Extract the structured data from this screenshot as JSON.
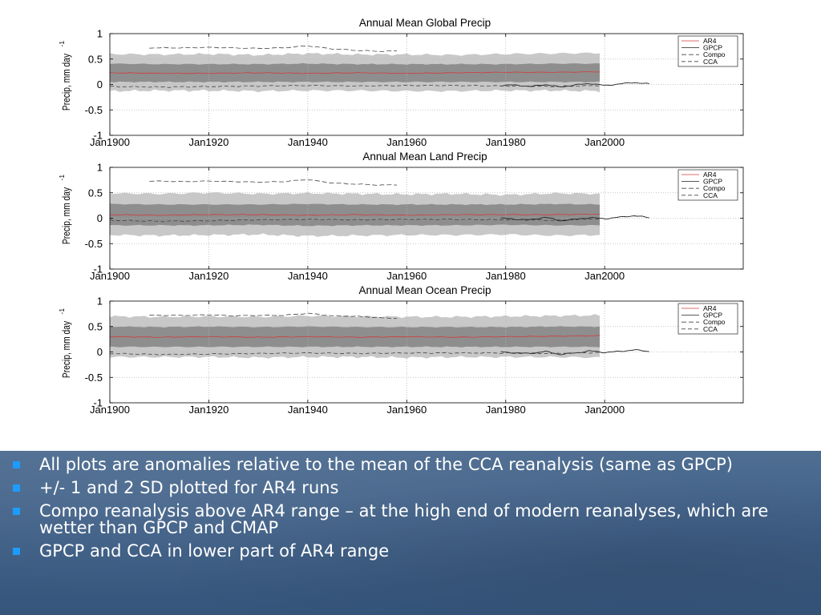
{
  "chart_data": [
    {
      "type": "line",
      "title": "Annual Mean Global Precip",
      "ylabel": "Precip, mm day",
      "ylabel_sup": "-1",
      "xlim": [
        1900,
        2028
      ],
      "ylim": [
        -1,
        1
      ],
      "xticks": [
        1900,
        1920,
        1940,
        1960,
        1980,
        2000
      ],
      "xtick_labels": [
        "Jan1900",
        "Jan1920",
        "Jan1940",
        "Jan1960",
        "Jan1980",
        "Jan2000"
      ],
      "yticks": [
        1,
        0.5,
        0,
        -0.5,
        -1
      ],
      "ytick_labels": [
        "1",
        "0.5",
        "0",
        "-0.5",
        "-1"
      ],
      "grid": true,
      "legend": [
        "AR4",
        "GPCP",
        "Compo",
        "CCA"
      ],
      "legend_position": "top-right",
      "band_2sd": {
        "x": [
          1900,
          1910,
          1920,
          1930,
          1940,
          1950,
          1960,
          1970,
          1980,
          1990,
          1999
        ],
        "upper": [
          0.6,
          0.59,
          0.6,
          0.58,
          0.61,
          0.59,
          0.59,
          0.58,
          0.6,
          0.61,
          0.62
        ],
        "lower": [
          -0.13,
          -0.12,
          -0.12,
          -0.13,
          -0.12,
          -0.12,
          -0.13,
          -0.13,
          -0.12,
          -0.12,
          -0.13
        ]
      },
      "band_1sd": {
        "x": [
          1900,
          1910,
          1920,
          1930,
          1940,
          1950,
          1960,
          1970,
          1980,
          1990,
          1999
        ],
        "upper": [
          0.41,
          0.4,
          0.4,
          0.4,
          0.41,
          0.4,
          0.4,
          0.4,
          0.4,
          0.41,
          0.41
        ],
        "lower": [
          0.05,
          0.05,
          0.05,
          0.05,
          0.05,
          0.05,
          0.05,
          0.05,
          0.05,
          0.05,
          0.05
        ]
      },
      "series": [
        {
          "name": "AR4",
          "x": [
            1900,
            1910,
            1920,
            1930,
            1940,
            1950,
            1960,
            1970,
            1980,
            1990,
            1999
          ],
          "values": [
            0.23,
            0.22,
            0.22,
            0.23,
            0.22,
            0.23,
            0.22,
            0.23,
            0.24,
            0.24,
            0.25
          ]
        },
        {
          "name": "GPCP",
          "x": [
            1979,
            1982,
            1985,
            1988,
            1991,
            1994,
            1997,
            2000,
            2003,
            2006,
            2009
          ],
          "values": [
            -0.02,
            -0.01,
            -0.04,
            0.0,
            -0.05,
            -0.01,
            0.02,
            -0.02,
            0.01,
            0.04,
            0.01
          ]
        },
        {
          "name": "Compo",
          "x": [
            1908,
            1915,
            1920,
            1925,
            1930,
            1935,
            1940,
            1945,
            1950,
            1955,
            1958
          ],
          "values": [
            0.72,
            0.72,
            0.73,
            0.72,
            0.71,
            0.72,
            0.76,
            0.7,
            0.67,
            0.65,
            0.66
          ]
        },
        {
          "name": "CCA",
          "x": [
            1900,
            1910,
            1920,
            1930,
            1940,
            1950,
            1960,
            1970,
            1980,
            1990,
            1999
          ],
          "values": [
            -0.04,
            -0.05,
            -0.04,
            -0.03,
            -0.02,
            -0.03,
            -0.02,
            -0.02,
            -0.03,
            -0.04,
            -0.02
          ]
        }
      ]
    },
    {
      "type": "line",
      "title": "Annual Mean Land Precip",
      "ylabel": "Precip, mm day",
      "ylabel_sup": "-1",
      "xlim": [
        1900,
        2028
      ],
      "ylim": [
        -1,
        1
      ],
      "xticks": [
        1900,
        1920,
        1940,
        1960,
        1980,
        2000
      ],
      "xtick_labels": [
        "Jan1900",
        "Jan1920",
        "Jan1940",
        "Jan1960",
        "Jan1980",
        "Jan2000"
      ],
      "yticks": [
        1,
        0.5,
        0,
        -0.5,
        -1
      ],
      "ytick_labels": [
        "1",
        "0.5",
        "0",
        "-0.5",
        "-1"
      ],
      "grid": true,
      "legend": [
        "AR4",
        "GPCP",
        "Compo",
        "CCA"
      ],
      "legend_position": "top-right",
      "band_2sd": {
        "x": [
          1900,
          1910,
          1920,
          1930,
          1940,
          1950,
          1960,
          1970,
          1980,
          1990,
          1999
        ],
        "upper": [
          0.49,
          0.48,
          0.5,
          0.48,
          0.49,
          0.48,
          0.47,
          0.48,
          0.46,
          0.49,
          0.48
        ],
        "lower": [
          -0.33,
          -0.34,
          -0.33,
          -0.32,
          -0.35,
          -0.34,
          -0.33,
          -0.33,
          -0.32,
          -0.34,
          -0.33
        ]
      },
      "band_1sd": {
        "x": [
          1900,
          1910,
          1920,
          1930,
          1940,
          1950,
          1960,
          1970,
          1980,
          1990,
          1999
        ],
        "upper": [
          0.28,
          0.27,
          0.27,
          0.27,
          0.28,
          0.27,
          0.27,
          0.27,
          0.27,
          0.28,
          0.27
        ],
        "lower": [
          -0.14,
          -0.14,
          -0.14,
          -0.13,
          -0.15,
          -0.14,
          -0.14,
          -0.14,
          -0.13,
          -0.14,
          -0.14
        ]
      },
      "series": [
        {
          "name": "AR4",
          "x": [
            1900,
            1910,
            1920,
            1930,
            1940,
            1950,
            1960,
            1970,
            1980,
            1990,
            1999
          ],
          "values": [
            0.07,
            0.06,
            0.07,
            0.07,
            0.06,
            0.07,
            0.06,
            0.07,
            0.07,
            0.07,
            0.08
          ]
        },
        {
          "name": "GPCP",
          "x": [
            1979,
            1982,
            1985,
            1988,
            1991,
            1994,
            1997,
            2000,
            2003,
            2006,
            2009
          ],
          "values": [
            0.0,
            -0.02,
            -0.03,
            0.02,
            -0.05,
            -0.02,
            0.01,
            -0.01,
            0.02,
            0.05,
            0.01
          ]
        },
        {
          "name": "Compo",
          "x": [
            1908,
            1915,
            1920,
            1925,
            1930,
            1935,
            1940,
            1945,
            1950,
            1955,
            1958
          ],
          "values": [
            0.73,
            0.72,
            0.73,
            0.72,
            0.71,
            0.72,
            0.76,
            0.69,
            0.67,
            0.65,
            0.66
          ]
        },
        {
          "name": "CCA",
          "x": [
            1900,
            1910,
            1920,
            1930,
            1940,
            1950,
            1960,
            1970,
            1980,
            1990,
            1999
          ],
          "values": [
            -0.04,
            -0.06,
            -0.05,
            -0.03,
            -0.02,
            -0.03,
            -0.02,
            -0.02,
            -0.03,
            -0.04,
            -0.01
          ]
        }
      ]
    },
    {
      "type": "line",
      "title": "Annual Mean Ocean Precip",
      "ylabel": "Precip, mm day",
      "ylabel_sup": "-1",
      "xlim": [
        1900,
        2028
      ],
      "ylim": [
        -1,
        1
      ],
      "xticks": [
        1900,
        1920,
        1940,
        1960,
        1980,
        2000
      ],
      "xtick_labels": [
        "Jan1900",
        "Jan1920",
        "Jan1940",
        "Jan1960",
        "Jan1980",
        "Jan2000"
      ],
      "yticks": [
        1,
        0.5,
        0,
        -0.5,
        -1
      ],
      "ytick_labels": [
        "1",
        "0.5",
        "0",
        "-0.5",
        "-1"
      ],
      "grid": true,
      "legend": [
        "AR4",
        "GPCP",
        "Compo",
        "CCA"
      ],
      "legend_position": "top-right",
      "band_2sd": {
        "x": [
          1900,
          1910,
          1920,
          1930,
          1940,
          1950,
          1960,
          1970,
          1980,
          1990,
          1999
        ],
        "upper": [
          0.7,
          0.69,
          0.7,
          0.69,
          0.71,
          0.7,
          0.69,
          0.69,
          0.7,
          0.71,
          0.72
        ],
        "lower": [
          -0.1,
          -0.1,
          -0.1,
          -0.11,
          -0.1,
          -0.1,
          -0.11,
          -0.1,
          -0.1,
          -0.1,
          -0.11
        ]
      },
      "band_1sd": {
        "x": [
          1900,
          1910,
          1920,
          1930,
          1940,
          1950,
          1960,
          1970,
          1980,
          1990,
          1999
        ],
        "upper": [
          0.5,
          0.49,
          0.5,
          0.49,
          0.5,
          0.49,
          0.49,
          0.49,
          0.49,
          0.5,
          0.5
        ],
        "lower": [
          0.1,
          0.1,
          0.1,
          0.1,
          0.1,
          0.1,
          0.1,
          0.1,
          0.1,
          0.1,
          0.1
        ]
      },
      "series": [
        {
          "name": "AR4",
          "x": [
            1900,
            1910,
            1920,
            1930,
            1940,
            1950,
            1960,
            1970,
            1980,
            1990,
            1999
          ],
          "values": [
            0.3,
            0.29,
            0.3,
            0.29,
            0.3,
            0.29,
            0.3,
            0.29,
            0.3,
            0.31,
            0.32
          ]
        },
        {
          "name": "GPCP",
          "x": [
            1979,
            1982,
            1985,
            1988,
            1991,
            1994,
            1997,
            2000,
            2003,
            2006,
            2009
          ],
          "values": [
            0.0,
            -0.02,
            -0.03,
            0.01,
            -0.05,
            -0.02,
            0.02,
            -0.01,
            0.01,
            0.04,
            0.01
          ]
        },
        {
          "name": "Compo",
          "x": [
            1908,
            1915,
            1920,
            1925,
            1930,
            1935,
            1940,
            1945,
            1950,
            1955,
            1958
          ],
          "values": [
            0.72,
            0.72,
            0.73,
            0.71,
            0.72,
            0.72,
            0.76,
            0.71,
            0.7,
            0.67,
            0.66
          ]
        },
        {
          "name": "CCA",
          "x": [
            1900,
            1910,
            1920,
            1930,
            1940,
            1950,
            1960,
            1970,
            1980,
            1990,
            1999
          ],
          "values": [
            -0.03,
            -0.05,
            -0.04,
            -0.03,
            -0.02,
            -0.03,
            -0.02,
            -0.02,
            -0.02,
            -0.03,
            -0.01
          ]
        }
      ]
    }
  ],
  "bullets": [
    "All plots are anomalies relative to the mean of the CCA reanalysis (same as GPCP)",
    "+/- 1 and 2 SD plotted for AR4 runs",
    "Compo reanalysis above AR4 range – at the high end of modern reanalyses, which are wetter than GPCP and CMAP",
    "GPCP and CCA in lower part of AR4 range"
  ],
  "colors": {
    "band_2sd": "#c8c8c8",
    "band_1sd": "#8e8e8e",
    "ar4": "#d23a3a",
    "obs": "#222222",
    "panel_bg": "#3f5f86",
    "bullet": "#1e9bff"
  }
}
